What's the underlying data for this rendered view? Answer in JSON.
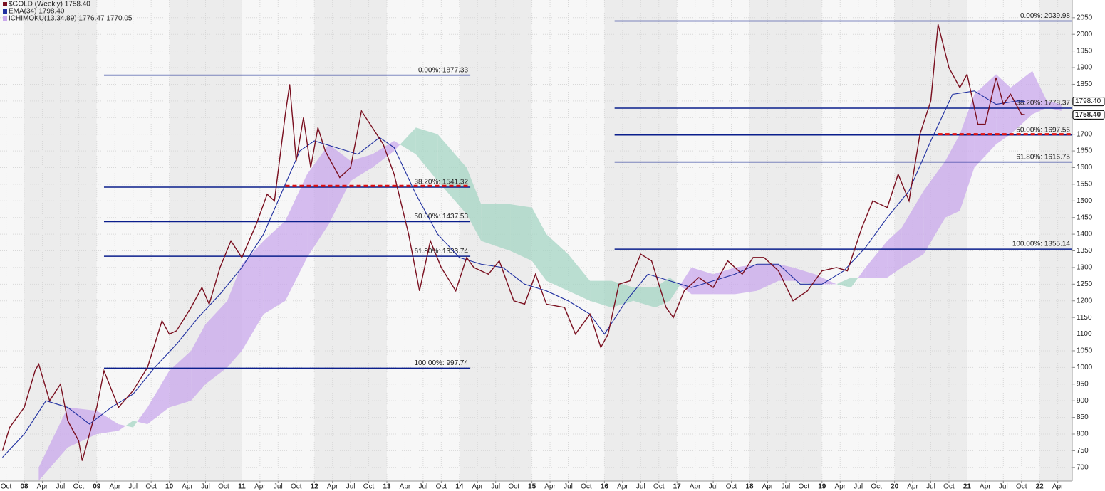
{
  "chart_data": {
    "type": "line",
    "xlim": [
      2007.666,
      2022.45
    ],
    "ylim": [
      659,
      2103
    ],
    "grid": true,
    "xticks": [
      {
        "value": 2007.75,
        "label": "Oct"
      },
      {
        "value": 2008,
        "label": "08"
      },
      {
        "value": 2008.25,
        "label": "Apr"
      },
      {
        "value": 2008.5,
        "label": "Jul"
      },
      {
        "value": 2008.75,
        "label": "Oct"
      },
      {
        "value": 2009,
        "label": "09"
      },
      {
        "value": 2009.25,
        "label": "Apr"
      },
      {
        "value": 2009.5,
        "label": "Jul"
      },
      {
        "value": 2009.75,
        "label": "Oct"
      },
      {
        "value": 2010,
        "label": "10"
      },
      {
        "value": 2010.25,
        "label": "Apr"
      },
      {
        "value": 2010.5,
        "label": "Jul"
      },
      {
        "value": 2010.75,
        "label": "Oct"
      },
      {
        "value": 2011,
        "label": "11"
      },
      {
        "value": 2011.25,
        "label": "Apr"
      },
      {
        "value": 2011.5,
        "label": "Jul"
      },
      {
        "value": 2011.75,
        "label": "Oct"
      },
      {
        "value": 2012,
        "label": "12"
      },
      {
        "value": 2012.25,
        "label": "Apr"
      },
      {
        "value": 2012.5,
        "label": "Jul"
      },
      {
        "value": 2012.75,
        "label": "Oct"
      },
      {
        "value": 2013,
        "label": "13"
      },
      {
        "value": 2013.25,
        "label": "Apr"
      },
      {
        "value": 2013.5,
        "label": "Jul"
      },
      {
        "value": 2013.75,
        "label": "Oct"
      },
      {
        "value": 2014,
        "label": "14"
      },
      {
        "value": 2014.25,
        "label": "Apr"
      },
      {
        "value": 2014.5,
        "label": "Jul"
      },
      {
        "value": 2014.75,
        "label": "Oct"
      },
      {
        "value": 2015,
        "label": "15"
      },
      {
        "value": 2015.25,
        "label": "Apr"
      },
      {
        "value": 2015.5,
        "label": "Jul"
      },
      {
        "value": 2015.75,
        "label": "Oct"
      },
      {
        "value": 2016,
        "label": "16"
      },
      {
        "value": 2016.25,
        "label": "Apr"
      },
      {
        "value": 2016.5,
        "label": "Jul"
      },
      {
        "value": 2016.75,
        "label": "Oct"
      },
      {
        "value": 2017,
        "label": "17"
      },
      {
        "value": 2017.25,
        "label": "Apr"
      },
      {
        "value": 2017.5,
        "label": "Jul"
      },
      {
        "value": 2017.75,
        "label": "Oct"
      },
      {
        "value": 2018,
        "label": "18"
      },
      {
        "value": 2018.25,
        "label": "Apr"
      },
      {
        "value": 2018.5,
        "label": "Jul"
      },
      {
        "value": 2018.75,
        "label": "Oct"
      },
      {
        "value": 2019,
        "label": "19"
      },
      {
        "value": 2019.25,
        "label": "Apr"
      },
      {
        "value": 2019.5,
        "label": "Jul"
      },
      {
        "value": 2019.75,
        "label": "Oct"
      },
      {
        "value": 2020,
        "label": "20"
      },
      {
        "value": 2020.25,
        "label": "Apr"
      },
      {
        "value": 2020.5,
        "label": "Jul"
      },
      {
        "value": 2020.75,
        "label": "Oct"
      },
      {
        "value": 2021,
        "label": "21"
      },
      {
        "value": 2021.25,
        "label": "Apr"
      },
      {
        "value": 2021.5,
        "label": "Jul"
      },
      {
        "value": 2021.75,
        "label": "Oct"
      },
      {
        "value": 2022,
        "label": "22"
      },
      {
        "value": 2022.25,
        "label": "Apr"
      }
    ],
    "yticks": [
      700,
      750,
      800,
      850,
      900,
      950,
      1000,
      1050,
      1100,
      1150,
      1200,
      1250,
      1300,
      1350,
      1400,
      1450,
      1500,
      1550,
      1600,
      1650,
      1700,
      1750,
      1800,
      1850,
      1900,
      1950,
      2000,
      2050
    ],
    "series": [
      {
        "name": "$GOLD (Weekly) 1758.40",
        "color": "#7a0f1f",
        "x": [
          2007.7,
          2007.8,
          2008.0,
          2008.15,
          2008.2,
          2008.35,
          2008.5,
          2008.6,
          2008.75,
          2008.8,
          2008.9,
          2009.0,
          2009.1,
          2009.3,
          2009.5,
          2009.7,
          2009.9,
          2010.0,
          2010.1,
          2010.3,
          2010.45,
          2010.55,
          2010.7,
          2010.85,
          2011.0,
          2011.2,
          2011.35,
          2011.45,
          2011.6,
          2011.66,
          2011.75,
          2011.85,
          2011.95,
          2012.05,
          2012.15,
          2012.35,
          2012.5,
          2012.65,
          2012.8,
          2012.95,
          2013.1,
          2013.3,
          2013.45,
          2013.6,
          2013.75,
          2013.95,
          2014.1,
          2014.2,
          2014.4,
          2014.55,
          2014.75,
          2014.9,
          2015.05,
          2015.2,
          2015.45,
          2015.6,
          2015.8,
          2015.95,
          2016.05,
          2016.2,
          2016.35,
          2016.5,
          2016.65,
          2016.85,
          2016.95,
          2017.1,
          2017.3,
          2017.5,
          2017.7,
          2017.9,
          2018.05,
          2018.2,
          2018.4,
          2018.6,
          2018.8,
          2019.0,
          2019.2,
          2019.35,
          2019.55,
          2019.7,
          2019.9,
          2020.05,
          2020.2,
          2020.35,
          2020.5,
          2020.6,
          2020.75,
          2020.9,
          2021.0,
          2021.15,
          2021.25,
          2021.4,
          2021.5,
          2021.6,
          2021.75,
          2021.8
        ],
        "values": [
          750,
          820,
          880,
          990,
          1010,
          900,
          950,
          840,
          780,
          720,
          800,
          880,
          990,
          880,
          930,
          1000,
          1140,
          1100,
          1110,
          1180,
          1240,
          1190,
          1300,
          1380,
          1330,
          1430,
          1520,
          1500,
          1760,
          1850,
          1620,
          1750,
          1600,
          1720,
          1650,
          1570,
          1600,
          1770,
          1720,
          1670,
          1580,
          1400,
          1230,
          1380,
          1300,
          1230,
          1330,
          1300,
          1280,
          1320,
          1200,
          1190,
          1280,
          1190,
          1180,
          1100,
          1160,
          1060,
          1100,
          1250,
          1260,
          1340,
          1320,
          1180,
          1150,
          1230,
          1270,
          1240,
          1320,
          1280,
          1330,
          1330,
          1290,
          1200,
          1230,
          1290,
          1300,
          1290,
          1420,
          1500,
          1480,
          1580,
          1500,
          1700,
          1800,
          2030,
          1900,
          1840,
          1880,
          1730,
          1730,
          1870,
          1790,
          1820,
          1760,
          1758.4
        ]
      },
      {
        "name": "EMA(34) 1798.40",
        "color": "#1f2fa0",
        "x": [
          2007.7,
          2008.0,
          2008.3,
          2008.6,
          2008.9,
          2009.2,
          2009.5,
          2009.8,
          2010.1,
          2010.4,
          2010.7,
          2011.0,
          2011.3,
          2011.6,
          2011.8,
          2012.0,
          2012.3,
          2012.6,
          2012.9,
          2013.1,
          2013.4,
          2013.7,
          2014.0,
          2014.3,
          2014.6,
          2014.9,
          2015.2,
          2015.5,
          2015.8,
          2016.0,
          2016.3,
          2016.6,
          2016.9,
          2017.2,
          2017.5,
          2017.8,
          2018.1,
          2018.4,
          2018.7,
          2019.0,
          2019.3,
          2019.6,
          2019.9,
          2020.2,
          2020.5,
          2020.8,
          2021.1,
          2021.4,
          2021.7,
          2021.8
        ],
        "values": [
          730,
          800,
          900,
          880,
          830,
          880,
          920,
          1000,
          1070,
          1150,
          1220,
          1300,
          1400,
          1550,
          1650,
          1680,
          1660,
          1640,
          1690,
          1660,
          1520,
          1400,
          1330,
          1310,
          1300,
          1250,
          1230,
          1200,
          1160,
          1100,
          1200,
          1280,
          1260,
          1240,
          1260,
          1280,
          1310,
          1310,
          1250,
          1250,
          1290,
          1360,
          1450,
          1530,
          1680,
          1820,
          1830,
          1790,
          1800,
          1798.4
        ]
      }
    ],
    "cloud": {
      "name": "ICHIMOKU(13,34,89) 1776.47 1770.05",
      "up_color": "#c9a8ec",
      "down_color": "#a6d6c4",
      "x": [
        2008.2,
        2008.6,
        2009.0,
        2009.3,
        2009.5,
        2009.7,
        2010.0,
        2010.3,
        2010.5,
        2010.8,
        2011.0,
        2011.3,
        2011.6,
        2011.9,
        2012.2,
        2012.5,
        2012.8,
        2013.1,
        2013.4,
        2013.7,
        2014.1,
        2014.3,
        2014.7,
        2015.0,
        2015.2,
        2015.5,
        2015.8,
        2016.1,
        2016.4,
        2016.7,
        2016.9,
        2017.2,
        2017.5,
        2017.8,
        2018.1,
        2018.4,
        2018.6,
        2018.9,
        2019.2,
        2019.4,
        2019.6,
        2019.9,
        2020.1,
        2020.4,
        2020.7,
        2020.9,
        2021.1,
        2021.4,
        2021.6,
        2021.9,
        2022.1,
        2022.3
      ],
      "span_a": [
        700,
        880,
        870,
        830,
        820,
        880,
        990,
        1050,
        1130,
        1200,
        1310,
        1380,
        1440,
        1580,
        1670,
        1620,
        1640,
        1680,
        1640,
        1560,
        1460,
        1380,
        1350,
        1320,
        1260,
        1230,
        1200,
        1180,
        1200,
        1180,
        1200,
        1300,
        1280,
        1300,
        1310,
        1310,
        1300,
        1280,
        1250,
        1240,
        1300,
        1380,
        1420,
        1530,
        1620,
        1700,
        1820,
        1880,
        1840,
        1890,
        1800,
        1790
      ],
      "span_b": [
        660,
        760,
        800,
        810,
        840,
        830,
        880,
        900,
        950,
        1000,
        1050,
        1160,
        1200,
        1330,
        1430,
        1560,
        1600,
        1650,
        1720,
        1700,
        1600,
        1490,
        1490,
        1480,
        1400,
        1340,
        1260,
        1260,
        1240,
        1240,
        1270,
        1220,
        1220,
        1220,
        1230,
        1260,
        1260,
        1250,
        1250,
        1270,
        1270,
        1270,
        1300,
        1340,
        1450,
        1470,
        1600,
        1670,
        1700,
        1760,
        1780,
        1770
      ]
    },
    "fib": [
      {
        "color": "#0a1e8c",
        "x": [
          2009.1,
          2014.15
        ],
        "levels": [
          {
            "value": 1877.33,
            "label": "0.00%: 1877.33"
          },
          {
            "value": 1541.32,
            "label": "38.20%: 1541.32"
          },
          {
            "value": 1437.53,
            "label": "50.00%: 1437.53"
          },
          {
            "value": 1333.74,
            "label": "61.80%: 1333.74"
          },
          {
            "value": 997.74,
            "label": "100.00%: 997.74"
          }
        ]
      },
      {
        "color": "#0a1e8c",
        "x": [
          2016.14,
          2022.45
        ],
        "levels": [
          {
            "value": 2039.98,
            "label": "0.00%: 2039.98"
          },
          {
            "value": 1778.37,
            "label": "38.20%: 1778.37"
          },
          {
            "value": 1697.56,
            "label": "50.00%: 1697.56"
          },
          {
            "value": 1616.75,
            "label": "61.80%: 1616.75"
          },
          {
            "value": 1355.14,
            "label": "100.00%: 1355.14"
          }
        ]
      }
    ],
    "support_lines": [
      {
        "color": "#e01010",
        "x": [
          2011.6,
          2014.15
        ],
        "value": 1545
      },
      {
        "color": "#e01010",
        "x": [
          2020.6,
          2022.45
        ],
        "value": 1700
      }
    ],
    "price_tags": [
      {
        "value": 1798.4,
        "label": "1798.40"
      },
      {
        "value": 1758.4,
        "label": "1758.40"
      }
    ]
  }
}
